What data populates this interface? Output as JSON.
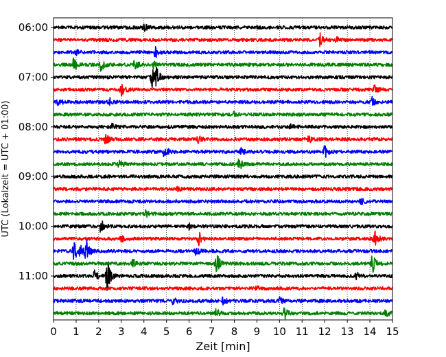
{
  "chart_data": {
    "type": "line",
    "title": "",
    "xlabel": "Zeit  [min]",
    "ylabel": "UTC (Lokalzeit = UTC + 01:00)",
    "xlim": [
      0,
      15
    ],
    "xticks": [
      0,
      1,
      2,
      3,
      4,
      5,
      6,
      7,
      8,
      9,
      10,
      11,
      12,
      13,
      14,
      15
    ],
    "xtick_labels": [
      "0",
      "1",
      "2",
      "3",
      "4",
      "5",
      "6",
      "7",
      "8",
      "9",
      "10",
      "11",
      "12",
      "13",
      "14",
      "15"
    ],
    "ytick_labels": [
      "06:00",
      "07:00",
      "08:00",
      "09:00",
      "10:00",
      "11:00"
    ],
    "ytick_trace_index": [
      0,
      4,
      8,
      12,
      16,
      20
    ],
    "grid": "vertical dotted at each minute",
    "trace_interval_min": 15,
    "trace_colors": [
      "#000000",
      "#ff0000",
      "#0000ff",
      "#008000"
    ],
    "traces": [
      {
        "start": "06:00",
        "color": "#000000",
        "events": [
          {
            "t": 4.0,
            "amp": 0.3
          }
        ]
      },
      {
        "start": "06:15",
        "color": "#ff0000",
        "events": [
          {
            "t": 11.8,
            "amp": 0.55
          },
          {
            "t": 12.5,
            "amp": 0.25
          }
        ]
      },
      {
        "start": "06:30",
        "color": "#0000ff",
        "events": [
          {
            "t": 4.5,
            "amp": 0.45
          },
          {
            "t": 1.0,
            "amp": 0.2
          }
        ]
      },
      {
        "start": "06:45",
        "color": "#008000",
        "events": [
          {
            "t": 0.9,
            "amp": 0.6
          },
          {
            "t": 2.1,
            "amp": 0.5
          },
          {
            "t": 3.6,
            "amp": 0.45
          },
          {
            "t": 4.4,
            "amp": 0.3
          }
        ]
      },
      {
        "start": "07:00",
        "color": "#000000",
        "events": [
          {
            "t": 4.35,
            "amp": 0.85
          },
          {
            "t": 4.55,
            "amp": 0.7
          }
        ]
      },
      {
        "start": "07:15",
        "color": "#ff0000",
        "events": [
          {
            "t": 3.0,
            "amp": 0.65
          },
          {
            "t": 14.2,
            "amp": 0.3
          }
        ]
      },
      {
        "start": "07:30",
        "color": "#0000ff",
        "events": [
          {
            "t": 0.2,
            "amp": 0.35
          },
          {
            "t": 14.1,
            "amp": 0.35
          },
          {
            "t": 2.5,
            "amp": 0.25
          }
        ]
      },
      {
        "start": "07:45",
        "color": "#008000",
        "events": [
          {
            "t": 8.0,
            "amp": 0.2
          }
        ]
      },
      {
        "start": "08:00",
        "color": "#000000",
        "events": [
          {
            "t": 2.6,
            "amp": 0.2
          },
          {
            "t": 10.5,
            "amp": 0.2
          }
        ]
      },
      {
        "start": "08:15",
        "color": "#ff0000",
        "events": [
          {
            "t": 2.3,
            "amp": 0.4
          },
          {
            "t": 6.4,
            "amp": 0.3
          },
          {
            "t": 11.3,
            "amp": 0.25
          }
        ]
      },
      {
        "start": "08:30",
        "color": "#0000ff",
        "events": [
          {
            "t": 4.9,
            "amp": 0.55
          },
          {
            "t": 12.0,
            "amp": 0.5
          },
          {
            "t": 8.3,
            "amp": 0.25
          }
        ]
      },
      {
        "start": "08:45",
        "color": "#008000",
        "events": [
          {
            "t": 8.2,
            "amp": 0.55
          },
          {
            "t": 2.9,
            "amp": 0.3
          }
        ]
      },
      {
        "start": "09:00",
        "color": "#000000",
        "events": []
      },
      {
        "start": "09:15",
        "color": "#ff0000",
        "events": [
          {
            "t": 5.5,
            "amp": 0.15
          }
        ]
      },
      {
        "start": "09:30",
        "color": "#0000ff",
        "events": [
          {
            "t": 13.6,
            "amp": 0.2
          }
        ]
      },
      {
        "start": "09:45",
        "color": "#008000",
        "events": [
          {
            "t": 4.1,
            "amp": 0.25
          }
        ]
      },
      {
        "start": "10:00",
        "color": "#000000",
        "events": [
          {
            "t": 2.1,
            "amp": 0.55
          },
          {
            "t": 6.0,
            "amp": 0.2
          }
        ]
      },
      {
        "start": "10:15",
        "color": "#ff0000",
        "events": [
          {
            "t": 6.4,
            "amp": 0.65
          },
          {
            "t": 14.2,
            "amp": 0.85
          },
          {
            "t": 3.0,
            "amp": 0.25
          }
        ]
      },
      {
        "start": "10:30",
        "color": "#0000ff",
        "events": [
          {
            "t": 0.9,
            "amp": 0.85
          },
          {
            "t": 1.2,
            "amp": 0.7
          },
          {
            "t": 1.45,
            "amp": 0.9
          },
          {
            "t": 6.3,
            "amp": 0.35
          }
        ]
      },
      {
        "start": "10:45",
        "color": "#008000",
        "events": [
          {
            "t": 7.2,
            "amp": 1.1
          },
          {
            "t": 14.1,
            "amp": 0.85
          },
          {
            "t": 3.5,
            "amp": 0.35
          }
        ]
      },
      {
        "start": "11:00",
        "color": "#000000",
        "events": [
          {
            "t": 2.35,
            "amp": 1.6
          },
          {
            "t": 1.8,
            "amp": 0.45
          },
          {
            "t": 13.4,
            "amp": 0.3
          }
        ]
      },
      {
        "start": "11:15",
        "color": "#ff0000",
        "events": [
          {
            "t": 9.0,
            "amp": 0.15
          }
        ]
      },
      {
        "start": "11:30",
        "color": "#0000ff",
        "events": [
          {
            "t": 5.3,
            "amp": 0.3
          },
          {
            "t": 7.5,
            "amp": 0.3
          },
          {
            "t": 10.0,
            "amp": 0.25
          }
        ]
      },
      {
        "start": "11:45",
        "color": "#008000",
        "events": [
          {
            "t": 10.2,
            "amp": 0.55
          },
          {
            "t": 7.2,
            "amp": 0.35
          },
          {
            "t": 14.7,
            "amp": 0.25
          }
        ]
      }
    ]
  }
}
